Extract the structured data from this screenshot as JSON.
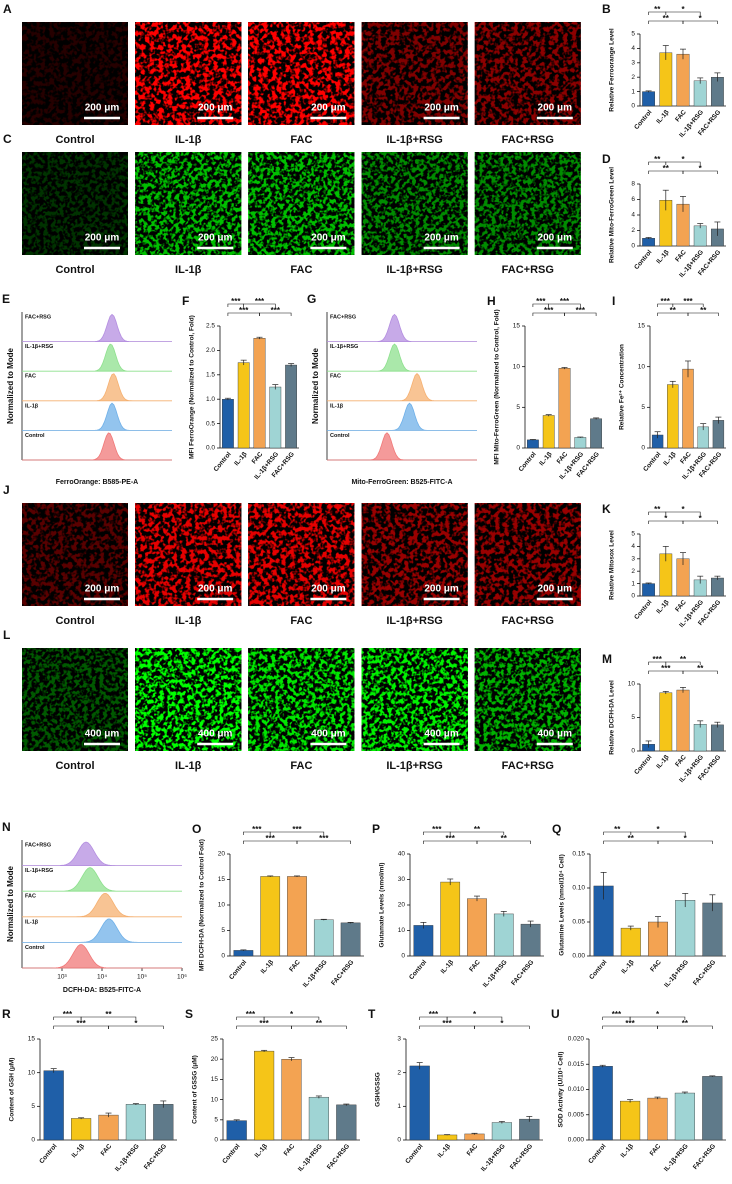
{
  "image_panels": [
    {
      "letter": "A",
      "color": "red",
      "scale_bar": "200 μm",
      "labels": [
        "Control",
        "IL-1β",
        "FAC",
        "IL-1β+RSG",
        "FAC+RSG"
      ]
    },
    {
      "letter": "C",
      "color": "green",
      "scale_bar": "200 μm",
      "labels": [
        "Control",
        "IL-1β",
        "FAC",
        "IL-1β+RSG",
        "FAC+RSG"
      ]
    },
    {
      "letter": "J",
      "color": "red",
      "scale_bar": "200 μm",
      "labels": [
        "Control",
        "IL-1β",
        "FAC",
        "IL-1β+RSG",
        "FAC+RSG"
      ]
    },
    {
      "letter": "L",
      "color": "green",
      "scale_bar": "400 μm",
      "labels": [
        "Control",
        "IL-1β",
        "FAC",
        "IL-1β+RSG",
        "FAC+RSG"
      ]
    }
  ],
  "chart_data": [
    {
      "letter": "B",
      "type": "bar",
      "ylabel": "Relative Ferroorange Level",
      "categories": [
        "Control",
        "IL-1β",
        "FAC",
        "IL-1β+RSG",
        "FAC+RSG"
      ],
      "values": [
        1,
        3.7,
        3.6,
        1.75,
        2.0
      ],
      "errors": [
        0.05,
        0.5,
        0.35,
        0.2,
        0.3
      ],
      "colors": [
        "#1f5fa8",
        "#f5c518",
        "#f3a352",
        "#9fd4d4",
        "#5f7a8a"
      ],
      "ylim": [
        0,
        5
      ],
      "yticks": [
        0,
        1,
        2,
        3,
        4,
        5
      ],
      "significance": [
        "**",
        "*",
        "**",
        "*"
      ]
    },
    {
      "letter": "D",
      "type": "bar",
      "ylabel": "Relative Mito-FerroGreen Level",
      "categories": [
        "Control",
        "IL-1β",
        "FAC",
        "IL-1β+RSG",
        "FAC+RSG"
      ],
      "values": [
        1,
        5.9,
        5.4,
        2.6,
        2.2
      ],
      "errors": [
        0.1,
        1.3,
        1.0,
        0.3,
        0.9
      ],
      "colors": [
        "#1f5fa8",
        "#f5c518",
        "#f3a352",
        "#9fd4d4",
        "#5f7a8a"
      ],
      "ylim": [
        0,
        8
      ],
      "yticks": [
        0,
        2,
        4,
        6,
        8
      ],
      "significance": [
        "**",
        "*",
        "**",
        "*"
      ]
    },
    {
      "letter": "E",
      "type": "ridgeline",
      "ylabel": "Normalized to Mode",
      "xlabel": "FerroOrange: B585-PE-A",
      "xlim": [
        1,
        1000000
      ],
      "log_x": true,
      "series": [
        {
          "name": "FAC+RSG",
          "color": "#b48ee0",
          "peak": 4000
        },
        {
          "name": "IL-1β+RSG",
          "color": "#8ee08e",
          "peak": 3500
        },
        {
          "name": "FAC",
          "color": "#f5b070",
          "peak": 4500
        },
        {
          "name": "IL-1β",
          "color": "#6fb0e8",
          "peak": 4000
        },
        {
          "name": "Control",
          "color": "#f07878",
          "peak": 3000
        }
      ]
    },
    {
      "letter": "F",
      "type": "bar",
      "ylabel": "MFI FerroOrange (Normalized to Control, Fold)",
      "categories": [
        "Control",
        "IL-1β",
        "FAC",
        "IL-1β+RSG",
        "FAC+RSG"
      ],
      "values": [
        1.0,
        1.75,
        2.25,
        1.25,
        1.7
      ],
      "errors": [
        0.02,
        0.05,
        0.02,
        0.05,
        0.03
      ],
      "colors": [
        "#1f5fa8",
        "#f5c518",
        "#f3a352",
        "#9fd4d4",
        "#5f7a8a"
      ],
      "ylim": [
        0,
        2.5
      ],
      "yticks": [
        {
          "value": 0,
          "label": "0.0"
        },
        0.5,
        {
          "value": 1,
          "label": "1.0"
        },
        1.5,
        {
          "value": 2,
          "label": "2.0"
        },
        2.5
      ],
      "significance": [
        "***",
        "***",
        "***",
        "***"
      ]
    },
    {
      "letter": "G",
      "type": "ridgeline",
      "ylabel": "Normalized to Mode",
      "xlabel": "Mito-FerroGreen: B525-FITC-A",
      "xlim": [
        1,
        1000000
      ],
      "log_x": true,
      "series": [
        {
          "name": "FAC+RSG",
          "color": "#b48ee0",
          "peak": 500
        },
        {
          "name": "IL-1β+RSG",
          "color": "#8ee08e",
          "peak": 500
        },
        {
          "name": "FAC",
          "color": "#f5b070",
          "peak": 4000
        },
        {
          "name": "IL-1β",
          "color": "#6fb0e8",
          "peak": 2000
        },
        {
          "name": "Control",
          "color": "#f07878",
          "peak": 250
        }
      ]
    },
    {
      "letter": "H",
      "type": "bar",
      "ylabel": "MFI Mito-FerroGreen (Normalized to Control, Fold)",
      "categories": [
        "Control",
        "IL-1β",
        "FAC",
        "IL-1β+RSG",
        "FAC+RSG"
      ],
      "values": [
        1,
        4,
        9.8,
        1.3,
        3.6
      ],
      "errors": [
        0.05,
        0.1,
        0.1,
        0.05,
        0.1
      ],
      "colors": [
        "#1f5fa8",
        "#f5c518",
        "#f3a352",
        "#9fd4d4",
        "#5f7a8a"
      ],
      "ylim": [
        0,
        15
      ],
      "yticks": [
        0,
        5,
        10,
        15
      ],
      "significance": [
        "***",
        "***",
        "***",
        "***"
      ]
    },
    {
      "letter": "I",
      "type": "bar",
      "ylabel": "Relative Fe²⁺ Concentration",
      "categories": [
        "Control",
        "IL-1β",
        "FAC",
        "IL-1β+RSG",
        "FAC+RSG"
      ],
      "values": [
        1.6,
        7.8,
        9.7,
        2.6,
        3.4
      ],
      "errors": [
        0.4,
        0.4,
        1.0,
        0.4,
        0.4
      ],
      "colors": [
        "#1f5fa8",
        "#f5c518",
        "#f3a352",
        "#9fd4d4",
        "#5f7a8a"
      ],
      "ylim": [
        0,
        15
      ],
      "yticks": [
        0,
        5,
        10,
        15
      ],
      "significance": [
        "***",
        "***",
        "**",
        "**"
      ]
    },
    {
      "letter": "K",
      "type": "bar",
      "ylabel": "Relative Mitosox Level",
      "categories": [
        "Control",
        "IL-1β",
        "FAC",
        "IL-1β+RSG",
        "FAC+RSG"
      ],
      "values": [
        1,
        3.4,
        3.0,
        1.3,
        1.45
      ],
      "errors": [
        0.05,
        0.6,
        0.5,
        0.3,
        0.15
      ],
      "colors": [
        "#1f5fa8",
        "#f5c518",
        "#f3a352",
        "#9fd4d4",
        "#5f7a8a"
      ],
      "ylim": [
        0,
        5
      ],
      "yticks": [
        0,
        1,
        2,
        3,
        4,
        5
      ],
      "significance": [
        "**",
        "*",
        "*",
        "*"
      ]
    },
    {
      "letter": "M",
      "type": "bar",
      "ylabel": "Relative DCFH-DA Level",
      "categories": [
        "Control",
        "IL-1β",
        "FAC",
        "IL-1β+RSG",
        "FAC+RSG"
      ],
      "values": [
        1,
        8.7,
        9.1,
        4.0,
        3.9
      ],
      "errors": [
        0.5,
        0.2,
        0.4,
        0.5,
        0.4
      ],
      "colors": [
        "#1f5fa8",
        "#f5c518",
        "#f3a352",
        "#9fd4d4",
        "#5f7a8a"
      ],
      "ylim": [
        0,
        10
      ],
      "yticks": [
        0,
        5,
        10
      ],
      "significance": [
        "***",
        "**",
        "***",
        "**"
      ]
    },
    {
      "letter": "N",
      "type": "ridgeline",
      "ylabel": "Normalized to Mode",
      "xlabel": "DCFH-DA: B525-FITC-A",
      "xlim": [
        100,
        1000000
      ],
      "log_x": true,
      "xticks": [
        {
          "value": 1000,
          "label": "10³"
        },
        {
          "value": 10000,
          "label": "10⁴"
        },
        {
          "value": 100000,
          "label": "10⁵"
        },
        {
          "value": 1000000,
          "label": "10⁶"
        }
      ],
      "series": [
        {
          "name": "FAC+RSG",
          "color": "#b48ee0",
          "peak": 4000
        },
        {
          "name": "IL-1β+RSG",
          "color": "#8ee08e",
          "peak": 5000
        },
        {
          "name": "FAC",
          "color": "#f5b070",
          "peak": 12000
        },
        {
          "name": "IL-1β",
          "color": "#6fb0e8",
          "peak": 15000
        },
        {
          "name": "Control",
          "color": "#f07878",
          "peak": 3000
        }
      ]
    },
    {
      "letter": "O",
      "type": "bar",
      "ylabel": "MFI DCFH-DA (Normalized to Control Fold)",
      "categories": [
        "Control",
        "IL-1β",
        "FAC",
        "IL-1β+RSG",
        "FAC+RSG"
      ],
      "values": [
        1.1,
        15.6,
        15.6,
        7.1,
        6.5
      ],
      "errors": [
        0.1,
        0.1,
        0.1,
        0.1,
        0.1
      ],
      "colors": [
        "#1f5fa8",
        "#f5c518",
        "#f3a352",
        "#9fd4d4",
        "#5f7a8a"
      ],
      "ylim": [
        0,
        20
      ],
      "yticks": [
        0,
        5,
        10,
        15,
        20
      ],
      "significance": [
        "***",
        "***",
        "***",
        "***"
      ]
    },
    {
      "letter": "P",
      "type": "bar",
      "ylabel": "Glutamate Levels (nmol/ml)",
      "categories": [
        "Control",
        "IL-1β",
        "FAC",
        "IL-1β+RSG",
        "FAC+RSG"
      ],
      "values": [
        12,
        29,
        22.5,
        16.5,
        12.5
      ],
      "errors": [
        1.2,
        1.2,
        1.0,
        1.0,
        1.2
      ],
      "colors": [
        "#1f5fa8",
        "#f5c518",
        "#f3a352",
        "#9fd4d4",
        "#5f7a8a"
      ],
      "ylim": [
        0,
        40
      ],
      "yticks": [
        0,
        10,
        20,
        30,
        40
      ],
      "significance": [
        "***",
        "**",
        "***",
        "**"
      ]
    },
    {
      "letter": "Q",
      "type": "bar",
      "ylabel": "Glutamine Levels (nmol/10⁴ Cell)",
      "categories": [
        "Control",
        "IL-1β",
        "FAC",
        "IL-1β+RSG",
        "FAC+RSG"
      ],
      "values": [
        0.103,
        0.041,
        0.05,
        0.082,
        0.078
      ],
      "errors": [
        0.02,
        0.003,
        0.008,
        0.01,
        0.012
      ],
      "colors": [
        "#1f5fa8",
        "#f5c518",
        "#f3a352",
        "#9fd4d4",
        "#5f7a8a"
      ],
      "ylim": [
        0,
        0.15
      ],
      "yticks": [
        {
          "value": 0,
          "label": "0.00"
        },
        0.05,
        {
          "value": 0.1,
          "label": "0.10"
        },
        0.15
      ],
      "significance": [
        "**",
        "*",
        "**",
        "*"
      ]
    },
    {
      "letter": "R",
      "type": "bar",
      "ylabel": "Content of GSH (μM)",
      "categories": [
        "Control",
        "IL-1β",
        "FAC",
        "IL-1β+RSG",
        "FAC+RSG"
      ],
      "values": [
        10.3,
        3.2,
        3.7,
        5.3,
        5.3
      ],
      "errors": [
        0.3,
        0.1,
        0.3,
        0.1,
        0.5
      ],
      "colors": [
        "#1f5fa8",
        "#f5c518",
        "#f3a352",
        "#9fd4d4",
        "#5f7a8a"
      ],
      "ylim": [
        0,
        15
      ],
      "yticks": [
        0,
        5,
        10,
        15
      ],
      "significance": [
        "***",
        "**",
        "***",
        "*"
      ]
    },
    {
      "letter": "S",
      "type": "bar",
      "ylabel": "Content of GSSG (μM)",
      "categories": [
        "Control",
        "IL-1β",
        "FAC",
        "IL-1β+RSG",
        "FAC+RSG"
      ],
      "values": [
        4.8,
        22,
        20,
        10.6,
        8.7
      ],
      "errors": [
        0.2,
        0.2,
        0.4,
        0.3,
        0.2
      ],
      "colors": [
        "#1f5fa8",
        "#f5c518",
        "#f3a352",
        "#9fd4d4",
        "#5f7a8a"
      ],
      "ylim": [
        0,
        25
      ],
      "yticks": [
        0,
        5,
        10,
        15,
        20,
        25
      ],
      "significance": [
        "***",
        "*",
        "***",
        "**"
      ]
    },
    {
      "letter": "T",
      "type": "bar",
      "ylabel": "GSH/GSSG",
      "categories": [
        "Control",
        "IL-1β",
        "FAC",
        "IL-1β+RSG",
        "FAC+RSG"
      ],
      "values": [
        2.2,
        0.15,
        0.18,
        0.52,
        0.62
      ],
      "errors": [
        0.1,
        0.01,
        0.02,
        0.03,
        0.08
      ],
      "colors": [
        "#1f5fa8",
        "#f5c518",
        "#f3a352",
        "#9fd4d4",
        "#5f7a8a"
      ],
      "ylim": [
        0,
        3
      ],
      "yticks": [
        0,
        1,
        2,
        3
      ],
      "significance": [
        "***",
        "*",
        "***",
        "*"
      ]
    },
    {
      "letter": "U",
      "type": "bar",
      "ylabel": "SOD Activity (U/10⁴ Cell)",
      "categories": [
        "Control",
        "IL-1β",
        "FAC",
        "IL-1β+RSG",
        "FAC+RSG"
      ],
      "values": [
        0.0146,
        0.0077,
        0.0083,
        0.0093,
        0.0126
      ],
      "errors": [
        0.0002,
        0.0003,
        0.0002,
        0.0002,
        0.0001
      ],
      "colors": [
        "#1f5fa8",
        "#f5c518",
        "#f3a352",
        "#9fd4d4",
        "#5f7a8a"
      ],
      "ylim": [
        0,
        0.02
      ],
      "yticks": [
        {
          "value": 0,
          "label": "0.000"
        },
        0.005,
        {
          "value": 0.01,
          "label": "0.010"
        },
        0.015,
        {
          "value": 0.02,
          "label": "0.020"
        }
      ],
      "significance": [
        "***",
        "*",
        "***",
        "**"
      ]
    }
  ]
}
